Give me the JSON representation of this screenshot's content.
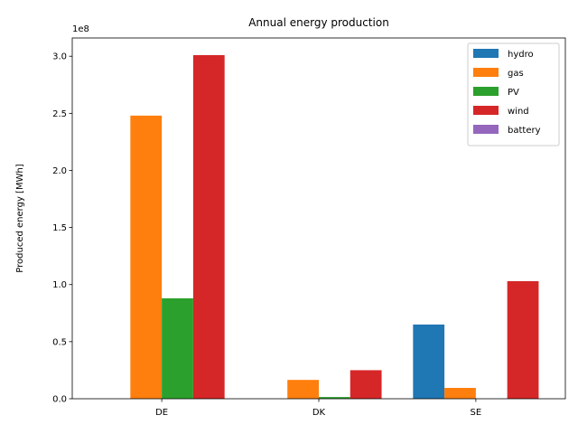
{
  "chart_data": {
    "type": "bar",
    "title": "Annual energy production",
    "xlabel": "",
    "ylabel": "Produced energy [MWh]",
    "offset_text": "1e8",
    "categories": [
      "DE",
      "DK",
      "SE"
    ],
    "ylim": [
      0,
      316000000.0
    ],
    "yticks": [
      0,
      50000000.0,
      100000000.0,
      150000000.0,
      200000000.0,
      250000000.0,
      300000000.0
    ],
    "ytick_labels": [
      "0.0",
      "0.5",
      "1.0",
      "1.5",
      "2.0",
      "2.5",
      "3.0"
    ],
    "grid": false,
    "legend_position": "top-right",
    "series": [
      {
        "name": "hydro",
        "color": "#1f77b4",
        "values": [
          0,
          0,
          65000000
        ]
      },
      {
        "name": "gas",
        "color": "#ff7f0e",
        "values": [
          248000000,
          16500000,
          9500000
        ]
      },
      {
        "name": "PV",
        "color": "#2ca02c",
        "values": [
          88000000,
          1500000,
          0
        ]
      },
      {
        "name": "wind",
        "color": "#d62728",
        "values": [
          301000000,
          25000000,
          103000000
        ]
      },
      {
        "name": "battery",
        "color": "#9467bd",
        "values": [
          0,
          0,
          0
        ]
      }
    ]
  }
}
